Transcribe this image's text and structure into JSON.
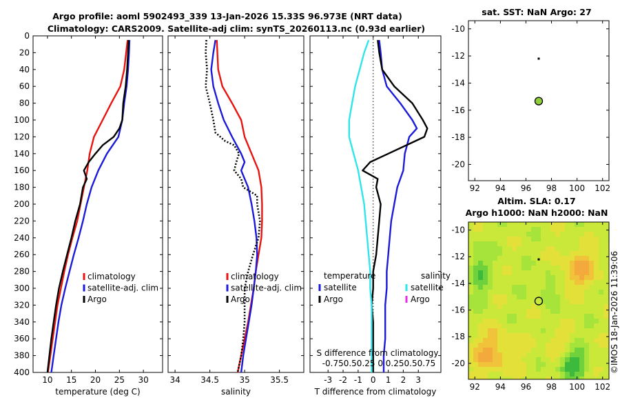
{
  "title": {
    "line1": "Argo profile: aoml 5902493_339 13-Jan-2026 15.33S 96.973E (NRT data)",
    "line2": "Climatology: CARS2009. Satellite-adj clim: synTS_20260113.nc (0.93d earlier)"
  },
  "watermark": "©IMOS 18-Jan-2026 11:39:06",
  "colors": {
    "red": "#e8130e",
    "blue": "#1a1ad8",
    "black": "#000000",
    "cyan": "#2ee6ea",
    "magenta": "#e62ee6",
    "dot_green": "#8fcf3a"
  },
  "chart_data": [
    {
      "type": "line",
      "id": "temperature",
      "xlabel": "temperature (deg C)",
      "ylabel": "",
      "xlim": [
        7,
        34
      ],
      "ylim": [
        400,
        0
      ],
      "xticks": [
        10,
        15,
        20,
        25,
        30
      ],
      "yticks": [
        0,
        20,
        40,
        60,
        80,
        100,
        120,
        140,
        160,
        180,
        200,
        220,
        240,
        260,
        280,
        300,
        320,
        340,
        360,
        380,
        400
      ],
      "legend": {
        "position": "lower-right",
        "items": [
          "climatology",
          "satellite-adj. clim",
          "Argo"
        ]
      },
      "series": [
        {
          "name": "climatology",
          "color": "red",
          "style": "solid",
          "y": [
            5,
            20,
            40,
            60,
            80,
            100,
            120,
            140,
            160,
            180,
            200,
            220,
            240,
            260,
            280,
            300,
            320,
            340,
            360,
            380,
            400
          ],
          "x": [
            26.7,
            26.4,
            26.0,
            25.2,
            23.3,
            21.5,
            19.7,
            18.8,
            18.3,
            17.6,
            16.9,
            16.2,
            15.2,
            14.3,
            13.5,
            12.8,
            12.1,
            11.6,
            11.1,
            10.6,
            10.1
          ]
        },
        {
          "name": "satellite-adj. clim",
          "color": "blue",
          "style": "solid",
          "y": [
            5,
            20,
            40,
            60,
            80,
            100,
            120,
            140,
            160,
            180,
            200,
            220,
            240,
            260,
            280,
            300,
            320,
            340,
            360,
            380,
            400
          ],
          "x": [
            27.1,
            27.0,
            26.8,
            26.5,
            26.0,
            25.6,
            24.8,
            22.4,
            20.6,
            19.2,
            18.2,
            17.4,
            16.5,
            15.5,
            14.6,
            13.7,
            12.9,
            12.3,
            11.8,
            11.3,
            10.8
          ]
        },
        {
          "name": "Argo",
          "color": "black",
          "style": "solid",
          "y": [
            5,
            20,
            40,
            60,
            80,
            100,
            110,
            120,
            130,
            140,
            150,
            160,
            170,
            180,
            200,
            220,
            240,
            260,
            280,
            300,
            320,
            340,
            360,
            380,
            400
          ],
          "x": [
            26.9,
            26.8,
            26.6,
            26.3,
            25.8,
            25.6,
            25.0,
            23.8,
            21.5,
            20.0,
            18.6,
            17.6,
            18.2,
            17.4,
            16.8,
            15.8,
            15.0,
            14.1,
            13.2,
            12.4,
            11.8,
            11.3,
            10.8,
            10.4,
            10.0
          ]
        }
      ]
    },
    {
      "type": "line",
      "id": "salinity",
      "xlabel": "salinity",
      "xlim": [
        33.9,
        35.85
      ],
      "ylim": [
        400,
        0
      ],
      "xticks": [
        34,
        34.5,
        35,
        35.5
      ],
      "legend": {
        "position": "lower-right",
        "items": [
          "climatology",
          "satellite-adj. clim",
          "Argo"
        ]
      },
      "series": [
        {
          "name": "climatology",
          "color": "red",
          "style": "solid",
          "y": [
            5,
            40,
            60,
            80,
            100,
            120,
            140,
            160,
            180,
            200,
            220,
            240,
            260,
            280,
            300,
            320,
            340,
            360,
            380,
            400
          ],
          "x": [
            34.6,
            34.62,
            34.68,
            34.82,
            34.95,
            35.0,
            35.1,
            35.2,
            35.24,
            35.25,
            35.25,
            35.24,
            35.2,
            35.16,
            35.13,
            35.09,
            35.05,
            35.0,
            34.95,
            34.9
          ]
        },
        {
          "name": "satellite-adj. clim",
          "color": "blue",
          "style": "solid",
          "y": [
            5,
            20,
            40,
            60,
            80,
            100,
            120,
            140,
            150,
            160,
            180,
            200,
            220,
            240,
            260,
            280,
            300,
            320,
            340,
            360,
            380,
            400
          ],
          "x": [
            34.58,
            34.55,
            34.52,
            34.55,
            34.62,
            34.7,
            34.82,
            34.95,
            35.0,
            34.95,
            35.05,
            35.1,
            35.14,
            35.17,
            35.18,
            35.16,
            35.13,
            35.1,
            35.06,
            35.02,
            34.98,
            34.95
          ]
        },
        {
          "name": "Argo",
          "color": "black",
          "style": "dotted",
          "y": [
            5,
            20,
            40,
            60,
            80,
            100,
            115,
            125,
            130,
            140,
            150,
            160,
            170,
            180,
            190,
            200,
            220,
            240,
            260,
            280,
            300,
            320,
            340,
            360,
            380,
            400
          ],
          "x": [
            34.45,
            34.44,
            34.46,
            34.44,
            34.5,
            34.55,
            34.58,
            34.72,
            34.85,
            34.92,
            34.88,
            34.85,
            34.95,
            34.98,
            35.18,
            35.18,
            35.22,
            35.2,
            35.12,
            35.05,
            35.0,
            35.0,
            35.0,
            34.98,
            34.95,
            34.9
          ]
        }
      ]
    },
    {
      "type": "line",
      "id": "difference",
      "xlabel": "T difference from climatology",
      "top_label": "S difference from climatology",
      "top_ticks": "-0.750.50.25  0  0.250.50.75",
      "xlim": [
        -4.2,
        4.5
      ],
      "ylim": [
        400,
        0
      ],
      "xticks": [
        -3,
        -2,
        -1,
        0,
        1,
        2,
        3
      ],
      "legend": {
        "position": "lower-center",
        "col1_title": "temperature",
        "col2_title": "salinity",
        "col1": [
          "satellite",
          "Argo"
        ],
        "col2": [
          "satellite",
          "Argo"
        ]
      },
      "series": [
        {
          "name": "T satellite",
          "color": "blue",
          "style": "solid",
          "y": [
            5,
            20,
            40,
            60,
            80,
            100,
            110,
            120,
            140,
            160,
            180,
            200,
            220,
            240,
            260,
            280,
            300,
            320,
            340,
            360,
            380,
            400
          ],
          "x": [
            0.4,
            0.5,
            0.6,
            0.9,
            1.8,
            2.6,
            2.9,
            2.4,
            2.1,
            2.0,
            1.6,
            1.4,
            1.2,
            1.1,
            1.0,
            0.9,
            0.9,
            0.8,
            0.8,
            0.8,
            0.7,
            0.7
          ]
        },
        {
          "name": "T Argo",
          "color": "black",
          "style": "solid",
          "y": [
            5,
            20,
            40,
            60,
            80,
            100,
            110,
            120,
            130,
            140,
            150,
            160,
            170,
            180,
            200,
            220,
            240,
            260,
            280,
            300,
            320,
            340,
            360,
            380,
            400
          ],
          "x": [
            0.3,
            0.4,
            0.6,
            1.4,
            2.6,
            3.3,
            3.6,
            3.4,
            2.2,
            1.0,
            -0.2,
            -0.7,
            0.3,
            0.2,
            0.5,
            0.4,
            0.3,
            0.2,
            0.0,
            0.0,
            -0.1,
            0.0,
            0.0,
            0.0,
            0.0
          ]
        },
        {
          "name": "S satellite",
          "color": "cyan",
          "style": "solid",
          "y": [
            5,
            20,
            40,
            60,
            80,
            100,
            120,
            140,
            160,
            180,
            200,
            220,
            240,
            260,
            280,
            300,
            320,
            340,
            360,
            380,
            400
          ],
          "x": [
            -0.3,
            -0.6,
            -0.9,
            -1.2,
            -1.4,
            -1.6,
            -1.6,
            -1.3,
            -1.0,
            -0.8,
            -0.6,
            -0.5,
            -0.4,
            -0.3,
            -0.2,
            -0.2,
            -0.1,
            -0.1,
            -0.1,
            -0.1,
            -0.1
          ]
        }
      ]
    },
    {
      "type": "scatter",
      "id": "sst-map",
      "title": "sat. SST: NaN Argo: 27",
      "xlim": [
        91.5,
        102.5
      ],
      "ylim": [
        -21.2,
        -9.4
      ],
      "xticks": [
        92,
        94,
        96,
        98,
        100,
        102
      ],
      "yticks": [
        -10,
        -12,
        -14,
        -16,
        -18,
        -20
      ],
      "points": [
        {
          "lon": 97.0,
          "lat": -12.2,
          "kind": "small-marker"
        },
        {
          "lon": 97.0,
          "lat": -15.33,
          "kind": "profile"
        }
      ]
    },
    {
      "type": "heatmap",
      "id": "sla-map",
      "title_line1": "Altim. SLA: 0.17",
      "title_line2": "Argo h1000: NaN h2000: NaN",
      "xlim": [
        91.5,
        102.5
      ],
      "ylim": [
        -21.2,
        -9.4
      ],
      "xticks": [
        92,
        94,
        96,
        98,
        100,
        102
      ],
      "yticks": [
        -10,
        -12,
        -14,
        -16,
        -18,
        -20
      ],
      "points": [
        {
          "lon": 97.0,
          "lat": -12.2,
          "kind": "small-marker"
        },
        {
          "lon": 97.0,
          "lat": -15.33,
          "kind": "profile"
        }
      ]
    }
  ],
  "legend_labels": {
    "temp": [
      "climatology",
      "satellite-adj. clim",
      "Argo"
    ],
    "sal": [
      "climatology",
      "satellite-adj. clim",
      "Argo"
    ],
    "diff_titles": [
      "temperature",
      "salinity"
    ],
    "diff_items": [
      "satellite",
      "Argo",
      "satellite",
      "Argo"
    ]
  }
}
